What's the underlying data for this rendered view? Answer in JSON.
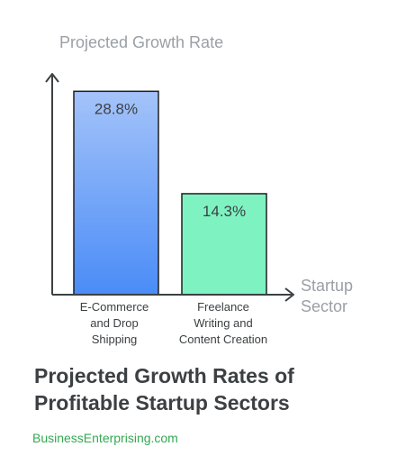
{
  "chart_data": {
    "type": "bar",
    "title": "Projected Growth Rates of Profitable Startup Sectors",
    "ylabel": "Projected Growth Rate",
    "xlabel": "Startup Sector",
    "categories": [
      "E-Commerce and Drop Shipping",
      "Freelance Writing and Content Creation"
    ],
    "values": [
      28.8,
      14.3
    ],
    "value_labels": [
      "28.8%",
      "14.3%"
    ],
    "unit": "%",
    "ylim": [
      0,
      30.5
    ],
    "grid": false,
    "bar_colors": [
      {
        "top": "#a4c3f9",
        "bottom": "#4a8cf7",
        "stroke": "#1f1f1f"
      },
      {
        "top": "#7ff2c1",
        "bottom": "#7ff2c1",
        "stroke": "#1f1f1f"
      }
    ]
  },
  "source_text": "BusinessEnterprising.com",
  "colors": {
    "axis": "#3c4043",
    "axis_label": "#9aa0a6",
    "title": "#3c4043",
    "source": "#34a853",
    "text": "#3c4043"
  }
}
